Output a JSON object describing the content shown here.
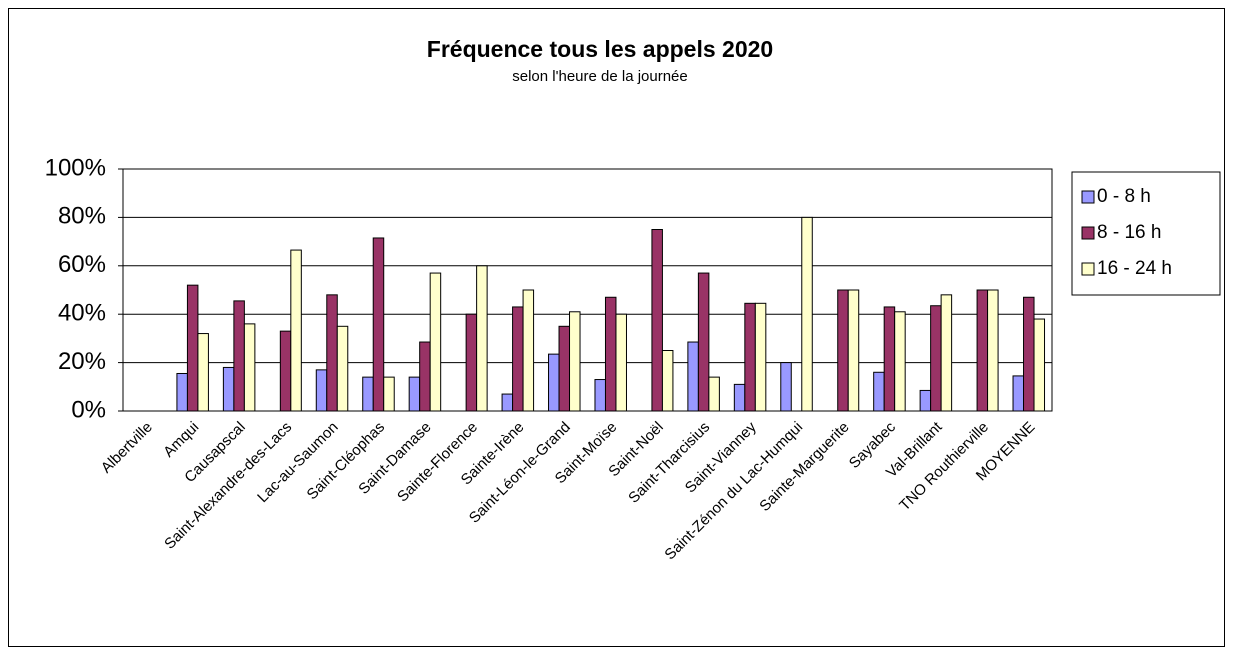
{
  "chart_data": {
    "type": "bar",
    "title": "Fréquence tous les appels 2020",
    "subtitle": "selon l'heure de la journée",
    "categories": [
      "Albertville",
      "Amqui",
      "Causapscal",
      "Saint-Alexandre-des-Lacs",
      "Lac-au-Saumon",
      "Saint-Cléophas",
      "Saint-Damase",
      "Sainte-Florence",
      "Sainte-Irène",
      "Saint-Léon-le-Grand",
      "Saint-Moïse",
      "Saint-Noël",
      "Saint-Tharcisius",
      "Saint-Vianney",
      "Saint-Zénon du Lac-Humqui",
      "Sainte-Marguerite",
      "Sayabec",
      "Val-Brillant",
      "TNO Routhierville",
      "MOYENNE"
    ],
    "series": [
      {
        "name": "0 - 8 h",
        "color": "#9999ff",
        "values": [
          0,
          15.5,
          18,
          0,
          17,
          14,
          14,
          0,
          7,
          23.5,
          13,
          0,
          28.5,
          11,
          20,
          0,
          16,
          8.5,
          0,
          14.5
        ]
      },
      {
        "name": "8 - 16 h",
        "color": "#993366",
        "values": [
          0,
          52,
          45.5,
          33,
          48,
          71.5,
          28.5,
          40,
          43,
          35,
          47,
          75,
          57,
          44.5,
          0,
          50,
          43,
          43.5,
          50,
          47
        ]
      },
      {
        "name": "16 - 24 h",
        "color": "#ffffcc",
        "values": [
          0,
          32,
          36,
          66.5,
          35,
          14,
          57,
          60,
          50,
          41,
          40,
          25,
          14,
          44.5,
          80,
          50,
          41,
          48,
          50,
          38
        ]
      }
    ],
    "ylim": [
      0,
      100
    ],
    "yticks": [
      {
        "value": 0,
        "label": "0%"
      },
      {
        "value": 20,
        "label": "20%"
      },
      {
        "value": 40,
        "label": "40%"
      },
      {
        "value": 60,
        "label": "60%"
      },
      {
        "value": 80,
        "label": "80%"
      },
      {
        "value": 100,
        "label": "100%"
      }
    ],
    "grid": true,
    "legend": "right"
  }
}
